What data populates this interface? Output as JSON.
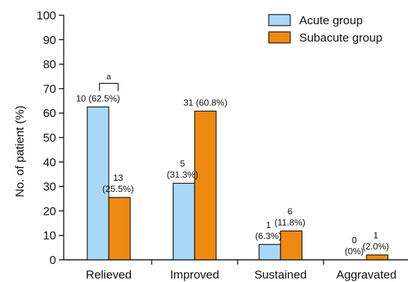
{
  "chart_data": {
    "type": "bar",
    "categories": [
      "Relieved",
      "Improved",
      "Sustained",
      "Aggravated"
    ],
    "series": [
      {
        "name": "Acute group",
        "color": "#a8d8f5",
        "values": [
          62.5,
          31.3,
          6.3,
          0
        ],
        "labels": [
          [
            "10 (62.5%)"
          ],
          [
            "5",
            "(31.3%)"
          ],
          [
            "1",
            "(6.3%)"
          ],
          [
            "0",
            "(0%)"
          ]
        ]
      },
      {
        "name": "Subacute group",
        "color": "#ee8a14",
        "values": [
          25.5,
          60.8,
          11.8,
          2.0
        ],
        "labels": [
          [
            "13",
            "(25.5%)"
          ],
          [
            "31 (60.8%)"
          ],
          [
            "6",
            "(11.8%)"
          ],
          [
            "1",
            "(2.0%)"
          ]
        ]
      }
    ],
    "ylabel": "No. of patient (%)",
    "ylim": [
      0,
      100
    ],
    "yticks": [
      "0",
      "10",
      "20",
      "30",
      "40",
      "50",
      "60",
      "70",
      "80",
      "90",
      "100"
    ],
    "legend_position": "top-right",
    "grid": false,
    "annotation": {
      "text": "a",
      "category": "Relieved"
    }
  }
}
